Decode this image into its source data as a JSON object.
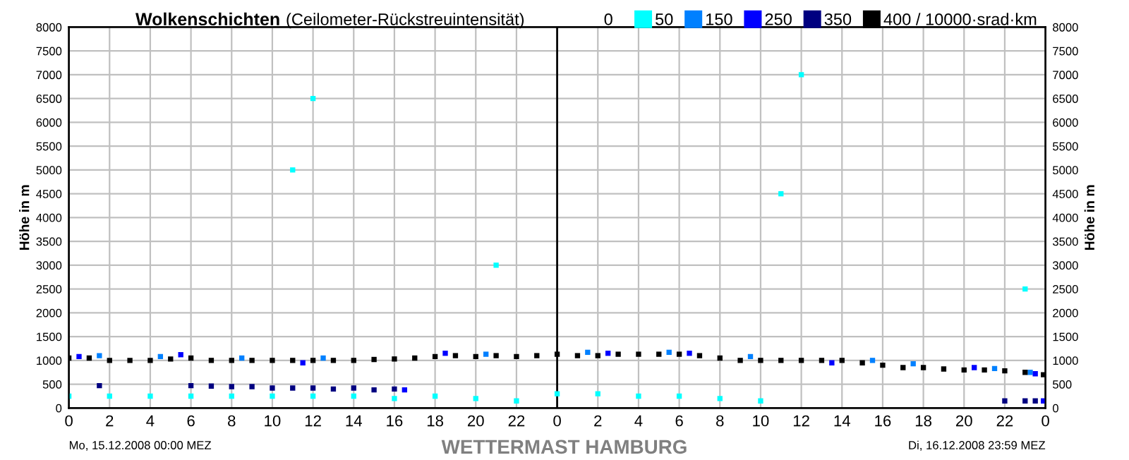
{
  "chart_data": {
    "type": "scatter",
    "title": "Wolkenschichten",
    "subtitle": "(Ceilometer-Rückstreuintensität)",
    "ylabel": "Höhe in m",
    "y2label": "Höhe in m",
    "legend_title": "0",
    "xlim": [
      "2008-12-15T00:00",
      "2008-12-17T00:00"
    ],
    "xticks": [
      {
        "value": "2008-12-15T00:00",
        "label": "0"
      },
      {
        "value": "2008-12-15T02:00",
        "label": "2"
      },
      {
        "value": "2008-12-15T04:00",
        "label": "4"
      },
      {
        "value": "2008-12-15T06:00",
        "label": "6"
      },
      {
        "value": "2008-12-15T08:00",
        "label": "8"
      },
      {
        "value": "2008-12-15T10:00",
        "label": "10"
      },
      {
        "value": "2008-12-15T12:00",
        "label": "12"
      },
      {
        "value": "2008-12-15T14:00",
        "label": "14"
      },
      {
        "value": "2008-12-15T16:00",
        "label": "16"
      },
      {
        "value": "2008-12-15T18:00",
        "label": "18"
      },
      {
        "value": "2008-12-15T20:00",
        "label": "20"
      },
      {
        "value": "2008-12-15T22:00",
        "label": "22"
      },
      {
        "value": "2008-12-16T00:00",
        "label": "0"
      },
      {
        "value": "2008-12-16T02:00",
        "label": "2"
      },
      {
        "value": "2008-12-16T04:00",
        "label": "4"
      },
      {
        "value": "2008-12-16T06:00",
        "label": "6"
      },
      {
        "value": "2008-12-16T08:00",
        "label": "8"
      },
      {
        "value": "2008-12-16T10:00",
        "label": "10"
      },
      {
        "value": "2008-12-16T12:00",
        "label": "12"
      },
      {
        "value": "2008-12-16T14:00",
        "label": "14"
      },
      {
        "value": "2008-12-16T16:00",
        "label": "16"
      },
      {
        "value": "2008-12-16T18:00",
        "label": "18"
      },
      {
        "value": "2008-12-16T20:00",
        "label": "20"
      },
      {
        "value": "2008-12-16T22:00",
        "label": "22"
      },
      {
        "value": "2008-12-17T00:00",
        "label": "0"
      }
    ],
    "ylim": [
      0,
      8000
    ],
    "yticks": [
      0,
      500,
      1000,
      1500,
      2000,
      2500,
      3000,
      3500,
      4000,
      4500,
      5000,
      5500,
      6000,
      6500,
      7000,
      7500,
      8000
    ],
    "y2lim": [
      0,
      8000
    ],
    "y2ticks": [
      0,
      500,
      1000,
      1500,
      2000,
      2500,
      3000,
      3500,
      4000,
      4500,
      5000,
      5500,
      6000,
      6500,
      7000,
      7500,
      8000
    ],
    "grid": true,
    "legend": "top right",
    "marker": "square",
    "ref_lines": [
      {
        "axis": "x",
        "value": "2008-12-16T00:00",
        "color": "#000000"
      }
    ],
    "annotations": [
      "Mo, 15.12.2008 00:00 MEZ",
      "Di, 16.12.2008 23:59 MEZ",
      "WETTERMAST HAMBURG"
    ],
    "series": [
      {
        "name": "50",
        "color": "#00ffff",
        "x": [
          "2008-12-15T00:00",
          "2008-12-15T02:00",
          "2008-12-15T04:00",
          "2008-12-15T06:00",
          "2008-12-15T08:00",
          "2008-12-15T10:00",
          "2008-12-15T12:00",
          "2008-12-15T14:00",
          "2008-12-15T16:00",
          "2008-12-15T18:00",
          "2008-12-15T20:00",
          "2008-12-15T22:00",
          "2008-12-16T00:00",
          "2008-12-16T02:00",
          "2008-12-16T04:00",
          "2008-12-16T06:00",
          "2008-12-16T08:00",
          "2008-12-16T10:00",
          "2008-12-15T11:00",
          "2008-12-15T12:00",
          "2008-12-15T21:00",
          "2008-12-16T11:00",
          "2008-12-16T12:00",
          "2008-12-16T23:00"
        ],
        "values": [
          250,
          250,
          250,
          250,
          250,
          250,
          250,
          250,
          200,
          250,
          200,
          150,
          300,
          300,
          250,
          250,
          200,
          150,
          5000,
          6500,
          3000,
          4500,
          7000,
          2500
        ]
      },
      {
        "name": "150",
        "color": "#0080ff",
        "x": [
          "2008-12-15T01:30",
          "2008-12-15T04:30",
          "2008-12-15T08:30",
          "2008-12-15T12:30",
          "2008-12-15T20:30",
          "2008-12-16T01:30",
          "2008-12-16T05:30",
          "2008-12-16T09:30",
          "2008-12-16T15:30",
          "2008-12-16T17:30",
          "2008-12-16T21:30",
          "2008-12-16T23:15"
        ],
        "values": [
          1100,
          1080,
          1050,
          1050,
          1130,
          1170,
          1170,
          1080,
          1000,
          930,
          830,
          750
        ]
      },
      {
        "name": "250",
        "color": "#0000ff",
        "x": [
          "2008-12-15T00:30",
          "2008-12-15T05:30",
          "2008-12-15T11:30",
          "2008-12-15T16:30",
          "2008-12-15T18:30",
          "2008-12-16T02:30",
          "2008-12-16T06:30",
          "2008-12-16T13:30",
          "2008-12-16T20:30",
          "2008-12-16T23:30",
          "2008-12-16T23:54"
        ],
        "values": [
          1080,
          1120,
          950,
          380,
          1150,
          1150,
          1150,
          950,
          850,
          720,
          150
        ]
      },
      {
        "name": "350",
        "color": "#000080",
        "x": [
          "2008-12-15T01:30",
          "2008-12-15T06:00",
          "2008-12-15T07:00",
          "2008-12-15T08:00",
          "2008-12-15T09:00",
          "2008-12-15T10:00",
          "2008-12-15T11:00",
          "2008-12-15T12:00",
          "2008-12-15T13:00",
          "2008-12-15T14:00",
          "2008-12-15T15:00",
          "2008-12-15T16:00",
          "2008-12-16T22:00",
          "2008-12-16T23:00",
          "2008-12-16T23:30"
        ],
        "values": [
          470,
          470,
          460,
          450,
          450,
          420,
          420,
          420,
          400,
          420,
          380,
          400,
          150,
          150,
          150
        ]
      },
      {
        "name": "400 / 10000·srad·km",
        "color": "#000000",
        "x": [
          "2008-12-15T00:00",
          "2008-12-15T01:00",
          "2008-12-15T02:00",
          "2008-12-15T03:00",
          "2008-12-15T04:00",
          "2008-12-15T05:00",
          "2008-12-15T06:00",
          "2008-12-15T07:00",
          "2008-12-15T08:00",
          "2008-12-15T09:00",
          "2008-12-15T10:00",
          "2008-12-15T11:00",
          "2008-12-15T12:00",
          "2008-12-15T13:00",
          "2008-12-15T14:00",
          "2008-12-15T15:00",
          "2008-12-15T16:00",
          "2008-12-15T17:00",
          "2008-12-15T18:00",
          "2008-12-15T19:00",
          "2008-12-15T20:00",
          "2008-12-15T21:00",
          "2008-12-15T22:00",
          "2008-12-15T23:00",
          "2008-12-16T00:00",
          "2008-12-16T01:00",
          "2008-12-16T02:00",
          "2008-12-16T03:00",
          "2008-12-16T04:00",
          "2008-12-16T05:00",
          "2008-12-16T06:00",
          "2008-12-16T07:00",
          "2008-12-16T08:00",
          "2008-12-16T09:00",
          "2008-12-16T10:00",
          "2008-12-16T11:00",
          "2008-12-16T12:00",
          "2008-12-16T13:00",
          "2008-12-16T14:00",
          "2008-12-16T15:00",
          "2008-12-16T16:00",
          "2008-12-16T17:00",
          "2008-12-16T18:00",
          "2008-12-16T19:00",
          "2008-12-16T20:00",
          "2008-12-16T21:00",
          "2008-12-16T22:00",
          "2008-12-16T23:00",
          "2008-12-16T23:54"
        ],
        "values": [
          1050,
          1050,
          1000,
          1000,
          1000,
          1030,
          1050,
          1000,
          1000,
          1000,
          1000,
          1000,
          1000,
          1000,
          1000,
          1020,
          1030,
          1050,
          1080,
          1100,
          1080,
          1100,
          1080,
          1100,
          1130,
          1100,
          1100,
          1130,
          1130,
          1130,
          1130,
          1100,
          1050,
          1000,
          1000,
          1000,
          1000,
          1000,
          1000,
          950,
          900,
          850,
          850,
          820,
          800,
          800,
          780,
          750,
          700
        ]
      }
    ]
  }
}
